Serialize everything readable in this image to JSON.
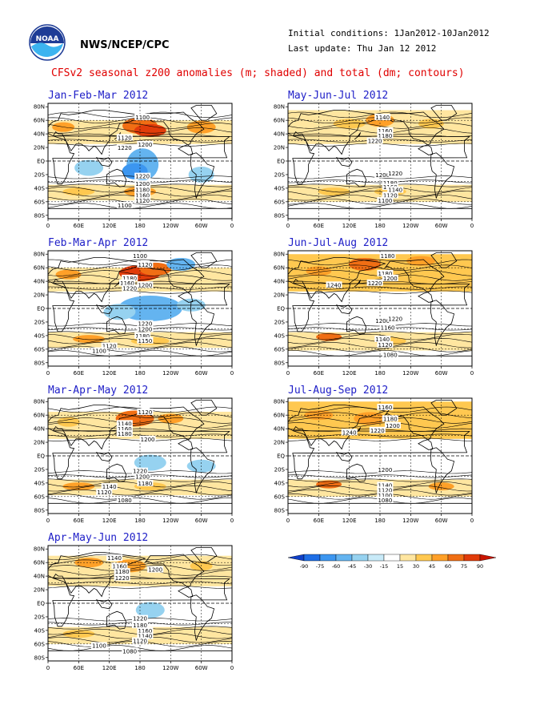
{
  "header": {
    "org": "NWS/NCEP/CPC",
    "logo_text": "NOAA",
    "initial_conditions": "Initial conditions: 1Jan2012-10Jan2012",
    "last_update": "Last update: Thu Jan 12 2012",
    "title": "CFSv2 seasonal z200 anomalies (m; shaded) and total (dm; contours)"
  },
  "axes": {
    "lat_labels": [
      "80N",
      "60N",
      "40N",
      "20N",
      "EQ",
      "20S",
      "40S",
      "60S",
      "80S"
    ],
    "lon_labels": [
      "0",
      "60E",
      "120E",
      "180",
      "120W",
      "60W",
      "0"
    ]
  },
  "colorbar": {
    "labels": [
      "-90",
      "-75",
      "-60",
      "-45",
      "-30",
      "-15",
      "15",
      "30",
      "45",
      "60",
      "75",
      "90"
    ],
    "colors": [
      "#1040c8",
      "#1e6ee6",
      "#3c96f0",
      "#64b4f0",
      "#96d2f0",
      "#c8eaf8",
      "#ffffff",
      "#ffe6a0",
      "#ffc850",
      "#ffa028",
      "#f06e14",
      "#e13c0a",
      "#c81400"
    ]
  },
  "chart_data": [
    {
      "type": "heatmap",
      "title": "Jan-Feb-Mar 2012",
      "contour_labels": [
        {
          "text": "1100",
          "lon": 185,
          "lat": 65
        },
        {
          "text": "1220",
          "lon": 150,
          "lat": 20
        },
        {
          "text": "1200",
          "lon": 190,
          "lat": 25
        },
        {
          "text": "1120",
          "lon": 150,
          "lat": 35
        },
        {
          "text": "1220",
          "lon": 185,
          "lat": -22
        },
        {
          "text": "1200",
          "lon": 185,
          "lat": -33
        },
        {
          "text": "1180",
          "lon": 185,
          "lat": -42
        },
        {
          "text": "1160",
          "lon": 185,
          "lat": -50
        },
        {
          "text": "1120",
          "lon": 185,
          "lat": -58
        },
        {
          "text": "1100",
          "lon": 150,
          "lat": -65
        }
      ]
    },
    {
      "type": "heatmap",
      "title": "May-Jun-Jul 2012",
      "contour_labels": [
        {
          "text": "1140",
          "lon": 185,
          "lat": 65
        },
        {
          "text": "1160",
          "lon": 190,
          "lat": 45
        },
        {
          "text": "1180",
          "lon": 190,
          "lat": 38
        },
        {
          "text": "1220",
          "lon": 170,
          "lat": 30
        },
        {
          "text": "1200",
          "lon": 185,
          "lat": -20
        },
        {
          "text": "1220",
          "lon": 210,
          "lat": -18
        },
        {
          "text": "1180",
          "lon": 200,
          "lat": -32
        },
        {
          "text": "1160",
          "lon": 200,
          "lat": -38
        },
        {
          "text": "1140",
          "lon": 210,
          "lat": -42
        },
        {
          "text": "1120",
          "lon": 200,
          "lat": -50
        },
        {
          "text": "1100",
          "lon": 190,
          "lat": -58
        }
      ]
    },
    {
      "type": "heatmap",
      "title": "Feb-Mar-Apr 2012",
      "contour_labels": [
        {
          "text": "1100",
          "lon": 180,
          "lat": 78
        },
        {
          "text": "1120",
          "lon": 190,
          "lat": 65
        },
        {
          "text": "1180",
          "lon": 160,
          "lat": 45
        },
        {
          "text": "1160",
          "lon": 155,
          "lat": 38
        },
        {
          "text": "1220",
          "lon": 160,
          "lat": 30
        },
        {
          "text": "1200",
          "lon": 190,
          "lat": 35
        },
        {
          "text": "1220",
          "lon": 190,
          "lat": -22
        },
        {
          "text": "1200",
          "lon": 190,
          "lat": -30
        },
        {
          "text": "1180",
          "lon": 185,
          "lat": -40
        },
        {
          "text": "1150",
          "lon": 190,
          "lat": -47
        },
        {
          "text": "1120",
          "lon": 120,
          "lat": -55
        },
        {
          "text": "1100",
          "lon": 100,
          "lat": -62
        }
      ]
    },
    {
      "type": "heatmap",
      "title": "Jun-Jul-Aug 2012",
      "contour_labels": [
        {
          "text": "1180",
          "lon": 195,
          "lat": 78
        },
        {
          "text": "1180",
          "lon": 190,
          "lat": 52
        },
        {
          "text": "1200",
          "lon": 200,
          "lat": 45
        },
        {
          "text": "1240",
          "lon": 90,
          "lat": 35
        },
        {
          "text": "1220",
          "lon": 170,
          "lat": 38
        },
        {
          "text": "1200",
          "lon": 185,
          "lat": -18
        },
        {
          "text": "1220",
          "lon": 210,
          "lat": -15
        },
        {
          "text": "1160",
          "lon": 195,
          "lat": -28
        },
        {
          "text": "1140",
          "lon": 185,
          "lat": -45
        },
        {
          "text": "1120",
          "lon": 190,
          "lat": -53
        },
        {
          "text": "1080",
          "lon": 200,
          "lat": -68
        }
      ]
    },
    {
      "type": "heatmap",
      "title": "Mar-Apr-May 2012",
      "contour_labels": [
        {
          "text": "1120",
          "lon": 190,
          "lat": 65
        },
        {
          "text": "1140",
          "lon": 150,
          "lat": 48
        },
        {
          "text": "1160",
          "lon": 150,
          "lat": 40
        },
        {
          "text": "1180",
          "lon": 150,
          "lat": 33
        },
        {
          "text": "1200",
          "lon": 195,
          "lat": 25
        },
        {
          "text": "1220",
          "lon": 180,
          "lat": -22
        },
        {
          "text": "1200",
          "lon": 185,
          "lat": -30
        },
        {
          "text": "1180",
          "lon": 190,
          "lat": -40
        },
        {
          "text": "1140",
          "lon": 120,
          "lat": -45
        },
        {
          "text": "1120",
          "lon": 110,
          "lat": -53
        },
        {
          "text": "1080",
          "lon": 150,
          "lat": -65
        }
      ]
    },
    {
      "type": "heatmap",
      "title": "Jul-Aug-Sep 2012",
      "contour_labels": [
        {
          "text": "1160",
          "lon": 190,
          "lat": 72
        },
        {
          "text": "1180",
          "lon": 200,
          "lat": 55
        },
        {
          "text": "1200",
          "lon": 205,
          "lat": 45
        },
        {
          "text": "1220",
          "lon": 175,
          "lat": 38
        },
        {
          "text": "1240",
          "lon": 120,
          "lat": 35
        },
        {
          "text": "1200",
          "lon": 190,
          "lat": -20
        },
        {
          "text": "1140",
          "lon": 190,
          "lat": -43
        },
        {
          "text": "1120",
          "lon": 190,
          "lat": -50
        },
        {
          "text": "1100",
          "lon": 190,
          "lat": -58
        },
        {
          "text": "1080",
          "lon": 190,
          "lat": -65
        }
      ]
    },
    {
      "type": "heatmap",
      "title": "Apr-May-Jun 2012",
      "contour_labels": [
        {
          "text": "1140",
          "lon": 130,
          "lat": 67
        },
        {
          "text": "1160",
          "lon": 140,
          "lat": 55
        },
        {
          "text": "1180",
          "lon": 145,
          "lat": 47
        },
        {
          "text": "1200",
          "lon": 210,
          "lat": 50
        },
        {
          "text": "1220",
          "lon": 145,
          "lat": 38
        },
        {
          "text": "1220",
          "lon": 180,
          "lat": -22
        },
        {
          "text": "1180",
          "lon": 180,
          "lat": -32
        },
        {
          "text": "1160",
          "lon": 190,
          "lat": -40
        },
        {
          "text": "1140",
          "lon": 190,
          "lat": -48
        },
        {
          "text": "1120",
          "lon": 180,
          "lat": -55
        },
        {
          "text": "1100",
          "lon": 100,
          "lat": -62
        },
        {
          "text": "1080",
          "lon": 160,
          "lat": -70
        }
      ]
    }
  ]
}
